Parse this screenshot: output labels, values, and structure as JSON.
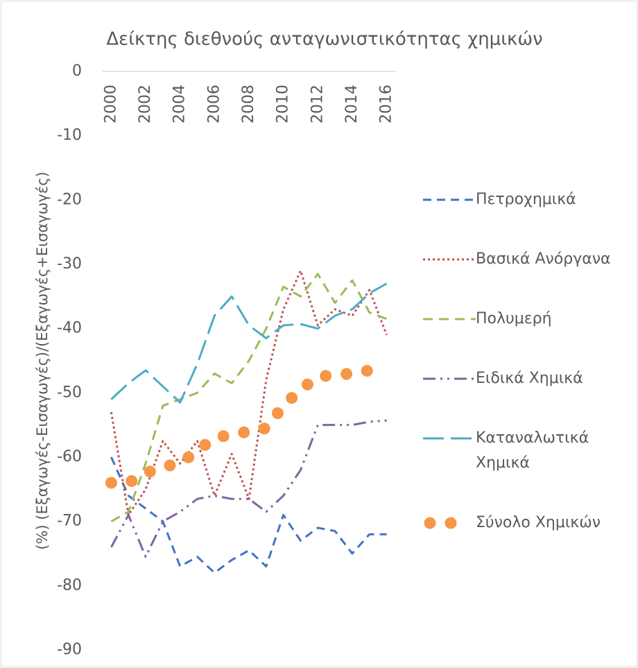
{
  "chart_data": {
    "type": "line",
    "title": "Δείκτης διεθνούς ανταγωνιστικότητας χημικών",
    "y_label": "(%) (Εξαγωγές-Εισαγωγές)/(Εξαγωγές+Εισαγωγές)",
    "categories": [
      "2000",
      null,
      "2002",
      null,
      "2004",
      null,
      "2006",
      null,
      "2008",
      null,
      "2010",
      null,
      "2012",
      null,
      "2014",
      null,
      "2016"
    ],
    "series": [
      {
        "name": "Πετροχημικά",
        "color": "#4472c4",
        "values": [
          -60,
          -66,
          -68,
          -70,
          -77,
          -75.5,
          -78,
          -76,
          -74.5,
          -77,
          -69,
          -73,
          -71,
          -71.5,
          -75,
          -72,
          -72
        ]
      },
      {
        "name": "Βασικά Ανόργανα",
        "color": "#c0504d",
        "values": [
          -53,
          -69,
          -65,
          -57.5,
          -61,
          -57.5,
          -66,
          -59.5,
          -66.5,
          -48,
          -37,
          -31,
          -39.5,
          -37,
          -38,
          -34,
          -41
        ]
      },
      {
        "name": "Πολυμερή",
        "color": "#9bbb59",
        "values": [
          -70,
          -68.5,
          -61,
          -52,
          -51,
          -50,
          -47,
          -48.5,
          -45,
          -40,
          -33.5,
          -35,
          -31.5,
          -36,
          -32.5,
          -37.5,
          -38.5
        ]
      },
      {
        "name": "Ειδικά Χημικά",
        "color": "#8064a2",
        "values": [
          -74,
          -69,
          -75.5,
          -70,
          -68.5,
          -66.5,
          -66,
          -66.5,
          -66.5,
          -68.5,
          -66,
          -62,
          -55,
          -55,
          -55,
          -54.5,
          -54.3
        ]
      },
      {
        "name": "Καταναλωτικά Χημικά",
        "color": "#4bacc6",
        "values": [
          -51,
          -48.5,
          -46.5,
          -49,
          -51.5,
          -45.5,
          -38,
          -35,
          -39.5,
          -41.5,
          -39.5,
          -39.3,
          -40,
          -38,
          -37,
          -34.5,
          -33
        ]
      },
      {
        "name": "Σύνολο Χημικών",
        "color": "#f79646",
        "values": [
          -64,
          -64,
          -62.5,
          -61.5,
          -61,
          -59,
          -57,
          -56.5,
          -56,
          -55.5,
          -52,
          -49.5,
          -47.5,
          -47.2,
          -47,
          -46.5,
          -46
        ]
      }
    ],
    "ylim": [
      -90,
      0
    ],
    "yticks": [
      0,
      -10,
      -20,
      -30,
      -40,
      -50,
      -60,
      -70,
      -80,
      -90
    ],
    "legend": "right"
  }
}
